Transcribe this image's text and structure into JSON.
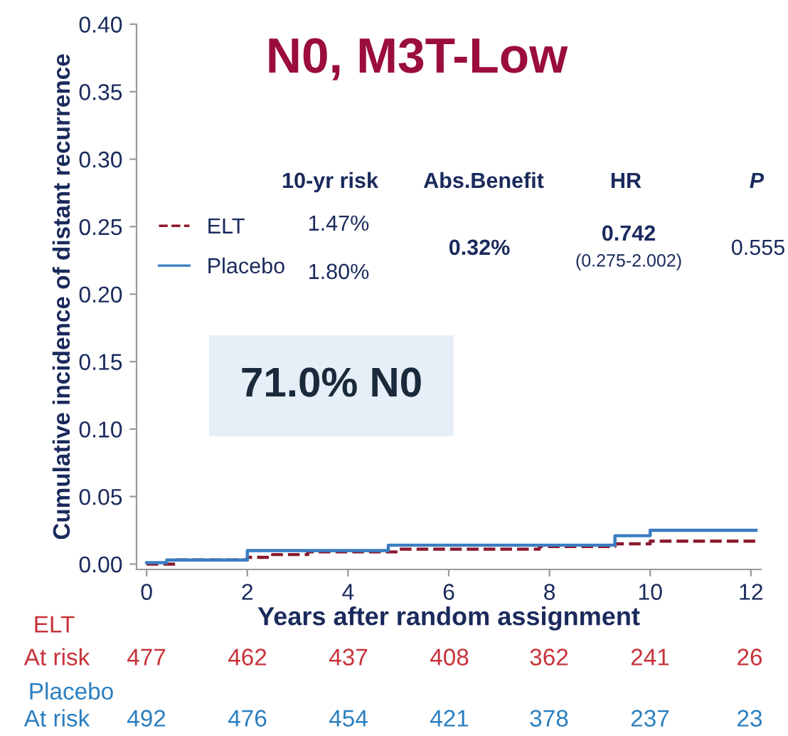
{
  "chart_data": {
    "type": "step",
    "title": "N0, M3T-Low",
    "xlabel": "Years after random assignment",
    "ylabel": "Cumulative incidence of distant recurrence",
    "xlim": [
      -0.2,
      12.2
    ],
    "xticks": [
      0,
      2,
      4,
      6,
      8,
      10,
      12
    ],
    "ylim": [
      -0.004,
      0.4
    ],
    "yticks": [
      {
        "value": 0,
        "label": "0.00"
      },
      {
        "value": 0.05,
        "label": "0.05"
      },
      {
        "value": 0.1,
        "label": "0.10"
      },
      {
        "value": 0.15,
        "label": "0.15"
      },
      {
        "value": 0.2,
        "label": "0.20"
      },
      {
        "value": 0.25,
        "label": "0.25"
      },
      {
        "value": 0.3,
        "label": "0.30"
      },
      {
        "value": 0.35,
        "label": "0.35"
      },
      {
        "value": 0.4,
        "label": "0.40"
      }
    ],
    "grid": false,
    "legend": "left",
    "series": [
      {
        "name": "ELT",
        "color": "#8b1a2e",
        "line_style": "dashed",
        "x": [
          0,
          0.6,
          2.0,
          2.5,
          3.2,
          5.0,
          7.8,
          9.3,
          10.0,
          12.1
        ],
        "values": [
          0,
          0.003,
          0.005,
          0.007,
          0.009,
          0.011,
          0.013,
          0.015,
          0.017,
          0.017
        ]
      },
      {
        "name": "Placebo",
        "color": "#3a7dc0",
        "line_style": "solid",
        "x": [
          0,
          0.4,
          2.0,
          4.8,
          9.3,
          10.0,
          12.1
        ],
        "values": [
          0.001,
          0.003,
          0.01,
          0.014,
          0.021,
          0.025,
          0.025
        ]
      }
    ],
    "annotations": [
      "10-yr risk",
      "Abs.Benefit",
      "HR",
      "P",
      "1.47%",
      "1.80%",
      "0.32%",
      "0.742",
      "(0.275-2.002)",
      "0.555",
      "ELT",
      "At risk",
      "477",
      "462",
      "437",
      "408",
      "362",
      "241",
      "26",
      "Placebo",
      "At risk",
      "492",
      "476",
      "454",
      "421",
      "378",
      "237",
      "23",
      "71.0% N0"
    ]
  }
}
